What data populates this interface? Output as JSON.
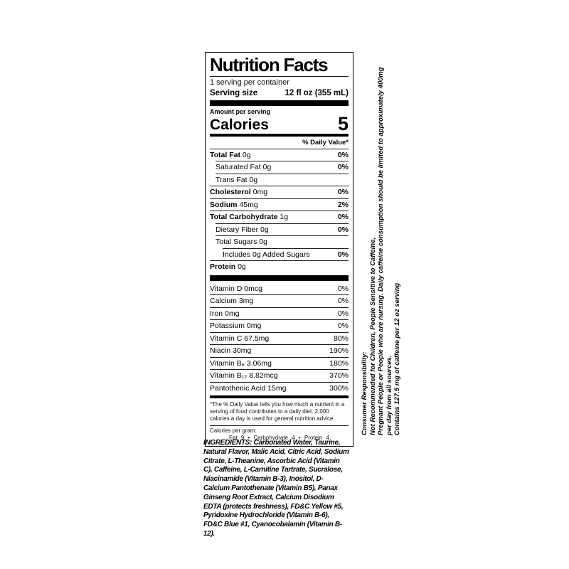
{
  "nutrition_label": {
    "title": "Nutrition Facts",
    "servings_per_container": "1 serving per container",
    "serving_size_label": "Serving size",
    "serving_size_value": "12 fl oz (355 mL)",
    "amount_per_serving": "Amount per serving",
    "calories_label": "Calories",
    "calories_value": "5",
    "daily_value_header": "% Daily Value*",
    "rows": [
      {
        "bold": "Total Fat",
        "rest": " 0g",
        "dv": "0%"
      },
      {
        "bold": "",
        "rest": "Saturated Fat 0g",
        "dv": "0%"
      },
      {
        "bold": "",
        "rest": "Trans Fat 0g",
        "dv": ""
      },
      {
        "bold": "Cholesterol",
        "rest": " 0mg",
        "dv": "0%"
      },
      {
        "bold": "Sodium",
        "rest": " 45mg",
        "dv": "2%"
      },
      {
        "bold": "Total Carbohydrate",
        "rest": " 1g",
        "dv": "0%"
      },
      {
        "bold": "",
        "rest": "Dietary Fiber 0g",
        "dv": "0%"
      },
      {
        "bold": "",
        "rest": "Total Sugars 0g",
        "dv": ""
      },
      {
        "bold": "",
        "rest": "Includes 0g Added Sugars",
        "dv": "0%"
      },
      {
        "bold": "Protein",
        "rest": " 0g",
        "dv": ""
      }
    ],
    "vitamin_rows": [
      {
        "label": "Vitamin D 0mcg",
        "dv": "0%"
      },
      {
        "label": "Calcium 3mg",
        "dv": "0%"
      },
      {
        "label": "Iron 0mg",
        "dv": "0%"
      },
      {
        "label": "Potassium 0mg",
        "dv": "0%"
      },
      {
        "label": "Vitamin C 67.5mg",
        "dv": "80%"
      },
      {
        "label": "Niacin 30mg",
        "dv": "190%"
      },
      {
        "label": "Vitamin B₆ 3.06mg",
        "dv": "180%"
      },
      {
        "label": "Vitamin B₁₂ 8.82mcg",
        "dv": "370%"
      },
      {
        "label": "Pantothenic Acid 15mg",
        "dv": "300%"
      }
    ],
    "footnote": "*The % Daily Value tells you how much a nutrient in a serving of food contributes to a daily diet. 2,000 calories a day is used for general nutrition advice.",
    "calories_per_gram_label": "Calories per gram:",
    "calories_per_gram_values": "Fat 9 • Carbohydrate 4 • Protein 4"
  },
  "caffeine_notice": {
    "lines": [
      "Consumer Responsibility:",
      "Not Recommended for Children, People Sensitive to Caffeine,",
      "Pregnant People or People who are nursing. Daily caffeine consumption should be limited to approximately 400mg",
      "per day from all sources.",
      "Contains 127.5 mg of caffeine per 12 oz serving"
    ]
  },
  "ingredients": {
    "text": "INGREDIENTS: Carbonated Water, Taurine, Natural Flavor, Malic Acid, Citric Acid, Sodium Citrate, L-Theanine, Ascorbic Acid (Vitamin C), Caffeine, L-Carnitine Tartrate, Sucralose, Niacinamide (Vitamin B-3), Inositol, D-Calcium Pantothenate (Vitamin B5), Panax Ginseng Root Extract, Calcium Disodium EDTA (protects freshness), FD&C Yellow #5, Pyridoxine Hydrochloride (Vitamin B-6), FD&C Blue #1, Cyanocobalamin (Vitamin B-12)."
  },
  "colors": {
    "text": "#000000",
    "border": "#000000",
    "background": "#ffffff"
  }
}
